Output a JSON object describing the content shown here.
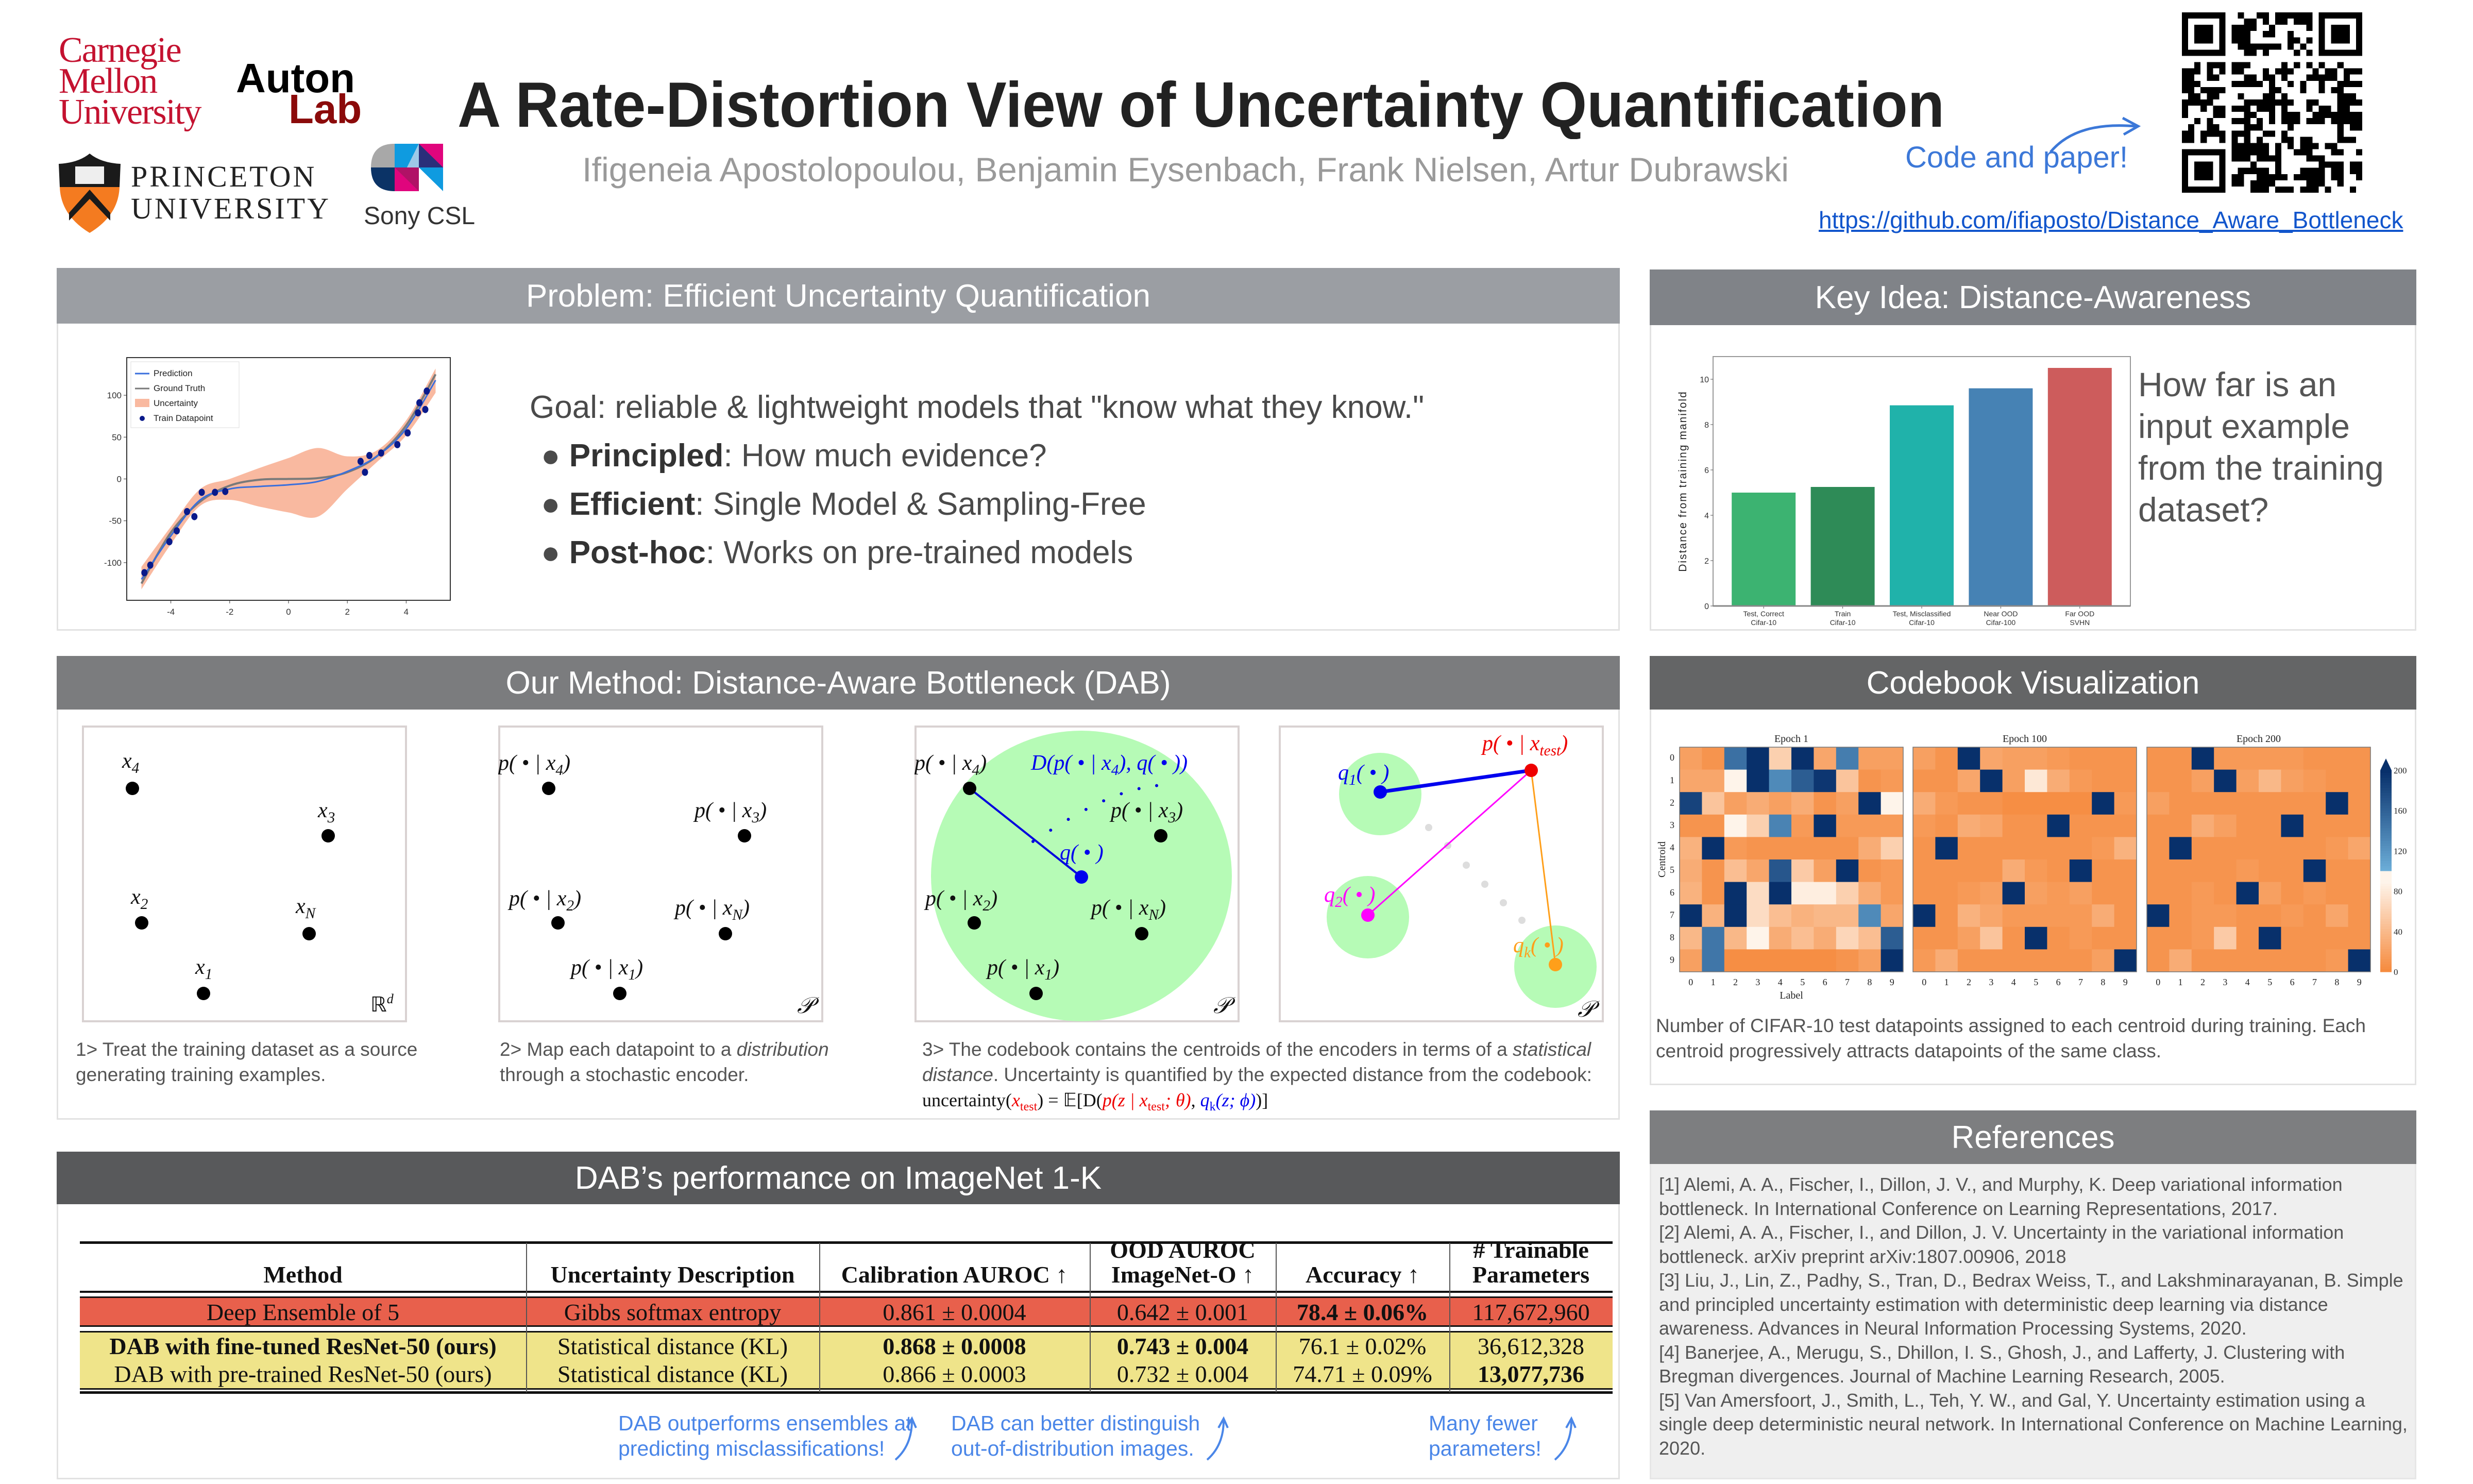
{
  "header": {
    "title": "A Rate-Distortion View of Uncertainty Quantification",
    "authors": "Ifigeneia Apostolopoulou, Benjamin Eysenbach, Frank Nielsen, Artur Dubrawski",
    "code_label": "Code and paper!",
    "link": "https://github.com/ifiaposto/Distance_Aware_Bottleneck"
  },
  "logos": {
    "cmu": [
      "Carnegie",
      "Mellon",
      "University"
    ],
    "auton": [
      "Auton",
      "Lab"
    ],
    "princeton": [
      "PRINCETON",
      "UNIVERSITY"
    ],
    "sony": "Sony CSL"
  },
  "colors": {
    "problem_header": "#9b9ea3",
    "key_idea_header": "#808388",
    "method_header": "#7b7c7e",
    "codebook_header": "#646566",
    "references_header": "#7d7e80",
    "performance_header": "#58595b",
    "accent_blue": "#4a86e8",
    "link_blue": "#1155cc",
    "cmu_red": "#c41230",
    "ensemble_row": "#e8604c",
    "dab_row": "#efe48a"
  },
  "problem": {
    "heading": "Problem: Efficient Uncertainty Quantification",
    "goal": "Goal: reliable & lightweight models that \"know what they know.\"",
    "bullets": [
      {
        "bold": "Principled",
        "rest": ": How much evidence?"
      },
      {
        "bold": "Efficient",
        "rest": ": Single Model & Sampling-Free"
      },
      {
        "bold": "Post-hoc",
        "rest": ": Works on pre-trained models"
      }
    ]
  },
  "key_idea": {
    "heading": "Key Idea: Distance-Awareness",
    "question": [
      "How far is an",
      "input example",
      "from the training",
      "dataset?"
    ]
  },
  "method": {
    "heading": "Our Method: Distance-Aware Bottleneck (DAB)",
    "panel1": {
      "labels": [
        {
          "main": "x",
          "sub": "4"
        },
        {
          "main": "x",
          "sub": "3"
        },
        {
          "main": "x",
          "sub": "2"
        },
        {
          "main": "x",
          "sub": "N"
        },
        {
          "main": "x",
          "sub": "1"
        }
      ],
      "space": "ℝ",
      "space_sup": "d"
    },
    "panel2": {
      "labels": [
        {
          "main": "p( • | x",
          "sub": "4",
          "post": ")"
        },
        {
          "main": "p( • | x",
          "sub": "3",
          "post": ")"
        },
        {
          "main": "p( • | x",
          "sub": "2",
          "post": ")"
        },
        {
          "main": "p( • | x",
          "sub": "N",
          "post": ")"
        },
        {
          "main": "p( • | x",
          "sub": "1",
          "post": ")"
        }
      ],
      "space": "𝒫"
    },
    "panel3": {
      "distance": {
        "main": "D(p( • | x",
        "sub": "4",
        "post": "), q( • ))"
      },
      "centroid": {
        "main": "q( • )"
      },
      "space": "𝒫"
    },
    "panel4": {
      "test": {
        "main": "p( • | x",
        "sub": "test",
        "post": ")"
      },
      "centroids": [
        {
          "main": "q",
          "sub": "1",
          "post": "( • )",
          "color": "#0000ee"
        },
        {
          "main": "q",
          "sub": "2",
          "post": "( • )",
          "color": "#ff00ff"
        },
        {
          "main": "q",
          "sub": "k",
          "post": "( • )",
          "color": "#ff9f1a"
        }
      ],
      "space": "𝒫"
    },
    "captions": {
      "c1": "1> Treat the training dataset as a source generating training examples.",
      "c2_a": "2> Map each datapoint to a ",
      "c2_i": "distribution",
      "c2_b": " through a stochastic encoder.",
      "c3_a": "3> The codebook contains the centroids of the encoders in terms of a ",
      "c3_i": "statistical distance",
      "c3_b": ". Uncertainty is quantified by the  expected distance from the codebook: ",
      "formula": {
        "f1": "uncertainty(",
        "f2": "x",
        "f3": "test",
        "f4": ") = 𝔼[D(",
        "f5": "p(z | x",
        "f6": "test",
        "f7": "; θ)",
        "f8": ", ",
        "f9": "q",
        "f10": "k",
        "f11": "(z; ϕ)",
        "f12": ")]"
      }
    }
  },
  "codebook": {
    "heading": "Codebook Visualization",
    "caption": "Number of CIFAR-10 test datapoints assigned to each centroid during training. Each centroid progressively attracts datapoints of the same class."
  },
  "references": {
    "heading": "References",
    "items": [
      "[1] Alemi, A. A., Fischer, I., Dillon, J. V., and Murphy, K. Deep variational information bottleneck. In International Conference on Learning Representations, 2017.",
      "[2] Alemi, A. A., Fischer, I., and Dillon, J. V. Uncertainty in the variational information bottleneck. arXiv preprint arXiv:1807.00906, 2018",
      "[3] Liu, J., Lin, Z., Padhy, S., Tran, D., Bedrax Weiss, T., and Lakshminarayanan, B. Simple and principled uncertainty estimation with deterministic deep learning via distance awareness. Advances in Neural Information Processing Systems, 2020.",
      "[4] Banerjee, A., Merugu, S., Dhillon, I. S., Ghosh, J., and Lafferty, J. Clustering with Bregman divergences. Journal of Machine Learning Research, 2005.",
      "[5] Van Amersfoort, J., Smith, L., Teh, Y. W., and Gal, Y. Uncertainty estimation using a single deep deterministic neural network. In International Conference on Machine Learning, 2020."
    ]
  },
  "performance": {
    "heading": "DAB’s performance on ImageNet 1-K",
    "table": {
      "headers": [
        [
          "Method"
        ],
        [
          "Uncertainty Description"
        ],
        [
          "Calibration AUROC ↑"
        ],
        [
          "OOD AUROC",
          "ImageNet-O ↑"
        ],
        [
          "Accuracy ↑"
        ],
        [
          "# Trainable",
          "Parameters"
        ]
      ],
      "rows": [
        {
          "cells": [
            "Deep Ensemble of 5",
            "Gibbs softmax entropy",
            "0.861 ± 0.0004",
            "0.642 ± 0.001",
            "78.4 ± 0.06%",
            "117,672,960"
          ],
          "bold": [
            4
          ],
          "group": "ensemble"
        },
        {
          "cells": [
            "DAB with fine-tuned ResNet-50 (ours)",
            "Statistical distance (KL)",
            "0.868 ± 0.0008",
            "0.743 ± 0.004",
            "76.1 ± 0.02%",
            "36,612,328"
          ],
          "bold": [
            0,
            2,
            3
          ],
          "group": "dab"
        },
        {
          "cells": [
            "DAB with pre-trained ResNet-50 (ours)",
            "Statistical distance (KL)",
            "0.866 ± 0.0003",
            "0.732 ± 0.004",
            "74.71 ± 0.09%",
            "13,077,736"
          ],
          "bold": [
            5
          ],
          "group": "dab"
        }
      ]
    },
    "annotations": [
      [
        "DAB outperforms ensembles at",
        "predicting misclassifications!"
      ],
      [
        "DAB can better distinguish",
        "out-of-distribution images."
      ],
      [
        "Many fewer",
        "parameters!"
      ]
    ]
  },
  "chart_data": [
    {
      "type": "line",
      "legend": [
        "Prediction",
        "Ground Truth",
        "Uncertainty",
        "Train Datapoint"
      ],
      "legend_placement": "top-left",
      "xlim": [
        -5.5,
        5.5
      ],
      "ylim": [
        -145,
        145
      ],
      "xticks": [
        -4,
        -2,
        0,
        2,
        4
      ],
      "yticks": [
        -100,
        -50,
        0,
        50,
        100
      ],
      "x": [
        -5,
        -4,
        -3,
        -2,
        -1,
        0,
        1,
        2,
        3,
        4,
        5
      ],
      "prediction": [
        -120,
        -68,
        -25,
        -12,
        -9,
        -7,
        -3,
        9,
        27,
        60,
        118
      ],
      "ground_truth": [
        -125,
        -64,
        -27,
        -8,
        -1,
        0,
        1,
        8,
        27,
        64,
        125
      ],
      "uncertainty_upper": [
        -105,
        -57,
        -12,
        0,
        13,
        25,
        37,
        27,
        34,
        70,
        132
      ],
      "uncertainty_lower": [
        -132,
        -78,
        -32,
        -25,
        -33,
        -40,
        -45,
        -12,
        20,
        52,
        103
      ],
      "train_points": [
        [
          -4.9,
          -112
        ],
        [
          -4.7,
          -103
        ],
        [
          -4.05,
          -75
        ],
        [
          -3.8,
          -62
        ],
        [
          -3.45,
          -39
        ],
        [
          -3.2,
          -45
        ],
        [
          -2.95,
          -16
        ],
        [
          -2.5,
          -16
        ],
        [
          -2.15,
          -15
        ],
        [
          2.45,
          21
        ],
        [
          2.6,
          8
        ],
        [
          2.75,
          28
        ],
        [
          3.15,
          31
        ],
        [
          3.7,
          41
        ],
        [
          4.05,
          55
        ],
        [
          4.4,
          79
        ],
        [
          4.45,
          91
        ],
        [
          4.65,
          83
        ],
        [
          4.7,
          105
        ]
      ],
      "colors": {
        "prediction": "#3a6fdc",
        "ground_truth": "#7a7a7a",
        "uncertainty": "#f9b9a0",
        "points": "#0a1a8a"
      }
    },
    {
      "type": "bar",
      "categories": [
        [
          "Test, Correct",
          "Cifar-10"
        ],
        [
          "Train",
          "Cifar-10"
        ],
        [
          "Test, Misclassified",
          "Cifar-10"
        ],
        [
          "Near OOD",
          "Cifar-100"
        ],
        [
          "Far OOD",
          "SVHN"
        ]
      ],
      "values": [
        5.0,
        5.25,
        8.85,
        9.6,
        10.5
      ],
      "colors": [
        "#3cb371",
        "#2e8b57",
        "#20b2aa",
        "#4682b4",
        "#cd5c5c"
      ],
      "ylabel": "Distance from training manifold",
      "ylim": [
        0,
        11
      ],
      "yticks": [
        0,
        2,
        4,
        6,
        8,
        10
      ]
    },
    {
      "type": "heatmap",
      "titles": [
        "Epoch 1",
        "Epoch 100",
        "Epoch 200"
      ],
      "xlabel": "Label",
      "ylabel": "Centroid",
      "ticks": [
        0,
        1,
        2,
        3,
        4,
        5,
        6,
        7,
        8,
        9
      ],
      "colorbar": {
        "ticks": [
          0,
          40,
          80,
          120,
          160,
          200
        ],
        "range": [
          0,
          200
        ],
        "extend": "max"
      },
      "matrices": [
        [
          [
            20,
            10,
            150,
            200,
            60,
            200,
            25,
            140,
            20,
            20
          ],
          [
            25,
            25,
            90,
            200,
            130,
            165,
            195,
            50,
            10,
            15
          ],
          [
            185,
            50,
            20,
            30,
            20,
            30,
            10,
            20,
            200,
            90
          ],
          [
            10,
            10,
            95,
            60,
            135,
            15,
            200,
            15,
            15,
            15
          ],
          [
            35,
            200,
            15,
            10,
            10,
            10,
            10,
            10,
            30,
            60
          ],
          [
            30,
            10,
            45,
            25,
            170,
            55,
            20,
            200,
            10,
            15
          ],
          [
            35,
            10,
            200,
            70,
            200,
            85,
            85,
            60,
            30,
            15
          ],
          [
            200,
            35,
            200,
            70,
            45,
            35,
            40,
            40,
            130,
            25
          ],
          [
            40,
            145,
            40,
            90,
            30,
            45,
            30,
            65,
            45,
            165
          ],
          [
            20,
            145,
            5,
            5,
            5,
            5,
            5,
            10,
            20,
            200
          ]
        ],
        [
          [
            20,
            10,
            200,
            25,
            20,
            20,
            15,
            10,
            10,
            10
          ],
          [
            10,
            10,
            25,
            200,
            20,
            80,
            30,
            15,
            10,
            10
          ],
          [
            30,
            15,
            10,
            10,
            5,
            5,
            5,
            5,
            200,
            15
          ],
          [
            15,
            10,
            30,
            25,
            10,
            10,
            200,
            10,
            10,
            10
          ],
          [
            10,
            200,
            10,
            10,
            10,
            10,
            10,
            10,
            15,
            35
          ],
          [
            10,
            10,
            10,
            10,
            30,
            15,
            10,
            200,
            10,
            10
          ],
          [
            10,
            10,
            15,
            20,
            200,
            20,
            15,
            20,
            10,
            10
          ],
          [
            200,
            10,
            35,
            25,
            15,
            15,
            15,
            15,
            30,
            10
          ],
          [
            10,
            10,
            20,
            50,
            10,
            200,
            10,
            15,
            10,
            10
          ],
          [
            15,
            30,
            10,
            10,
            10,
            10,
            10,
            10,
            20,
            200
          ]
        ],
        [
          [
            10,
            10,
            200,
            15,
            15,
            15,
            15,
            10,
            10,
            10
          ],
          [
            10,
            10,
            20,
            200,
            20,
            40,
            20,
            15,
            10,
            10
          ],
          [
            20,
            10,
            10,
            10,
            10,
            10,
            10,
            10,
            200,
            10
          ],
          [
            10,
            10,
            30,
            20,
            10,
            10,
            200,
            10,
            10,
            10
          ],
          [
            10,
            200,
            10,
            10,
            10,
            10,
            10,
            10,
            15,
            25
          ],
          [
            10,
            10,
            10,
            10,
            15,
            10,
            10,
            200,
            10,
            10
          ],
          [
            10,
            10,
            15,
            10,
            200,
            20,
            10,
            15,
            10,
            10
          ],
          [
            200,
            10,
            15,
            15,
            10,
            10,
            15,
            10,
            25,
            10
          ],
          [
            10,
            10,
            15,
            55,
            10,
            200,
            10,
            10,
            10,
            10
          ],
          [
            10,
            30,
            10,
            10,
            10,
            10,
            10,
            10,
            15,
            200
          ]
        ]
      ]
    }
  ]
}
